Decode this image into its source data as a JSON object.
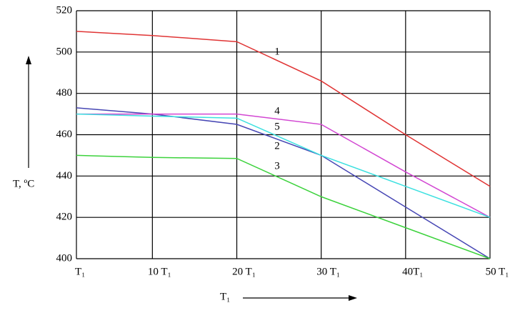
{
  "chart_data": {
    "type": "line",
    "y_label": "T, ºC",
    "x_label": "T₁",
    "x": [
      1,
      10,
      20,
      30,
      40,
      50
    ],
    "xlim": [
      1,
      50
    ],
    "xticks": [
      {
        "value": 1,
        "label": "T₁"
      },
      {
        "value": 10,
        "label": "10 T₁"
      },
      {
        "value": 20,
        "label": "20 T₁"
      },
      {
        "value": 30,
        "label": "30 T₁"
      },
      {
        "value": 40,
        "label": "40T₁"
      },
      {
        "value": 50,
        "label": "50 T₁"
      }
    ],
    "ylim": [
      400,
      520
    ],
    "yticks": [
      400,
      420,
      440,
      460,
      480,
      500,
      520
    ],
    "grid": true,
    "series": [
      {
        "name": "1",
        "color": "#e03434",
        "values": [
          510,
          508,
          505,
          486,
          460,
          435
        ]
      },
      {
        "name": "2",
        "color": "#4646b4",
        "values": [
          473,
          470,
          465,
          450,
          425,
          400
        ]
      },
      {
        "name": "3",
        "color": "#3cd23c",
        "values": [
          450,
          449,
          448.5,
          430,
          415,
          400
        ]
      },
      {
        "name": "4",
        "color": "#d246d2",
        "values": [
          470,
          470,
          470,
          465,
          442,
          420
        ]
      },
      {
        "name": "5",
        "color": "#3ce0e0",
        "values": [
          470,
          469,
          468,
          450,
          435,
          420
        ]
      }
    ]
  }
}
